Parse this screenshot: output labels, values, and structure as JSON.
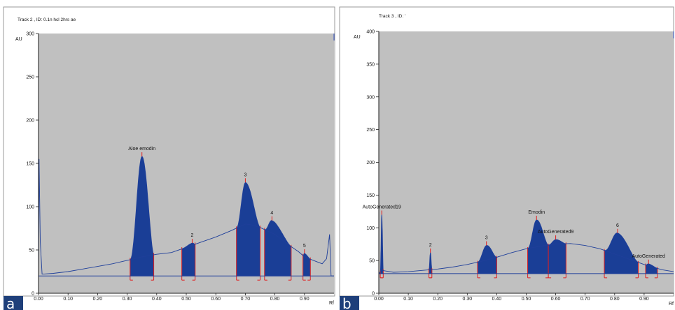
{
  "colors": {
    "plot_bg": "#c0c0c0",
    "trace": "#1f3f9a",
    "peak_fill": "#1a3e96",
    "marker": "#e02020",
    "axis": "#1a1a1a"
  },
  "chart_data": [
    {
      "type": "area",
      "title": "Track  2 , ID: 0.1n hcl 2hrs ae",
      "panel_letter": "a",
      "ylabel": "AU",
      "xlabel": "Rf",
      "xlim": [
        0,
        1.0
      ],
      "ylim": [
        0,
        300
      ],
      "x_ticks": [
        "0.00",
        "0.10",
        "0.20",
        "0.30",
        "0.40",
        "0.50",
        "0.60",
        "0.70",
        "0.80",
        "0.90"
      ],
      "y_ticks": [
        "0",
        "50",
        "100",
        "150",
        "200",
        "250",
        "300"
      ],
      "grid": false,
      "baseline": 20,
      "trace": [
        [
          0,
          20
        ],
        [
          0.002,
          155
        ],
        [
          0.006,
          60
        ],
        [
          0.012,
          22
        ],
        [
          0.05,
          23
        ],
        [
          0.1,
          25
        ],
        [
          0.15,
          28
        ],
        [
          0.2,
          31
        ],
        [
          0.25,
          34
        ],
        [
          0.3,
          38
        ],
        [
          0.35,
          42
        ],
        [
          0.4,
          45
        ],
        [
          0.45,
          47
        ],
        [
          0.5,
          53
        ],
        [
          0.55,
          59
        ],
        [
          0.6,
          65
        ],
        [
          0.65,
          72
        ],
        [
          0.7,
          80
        ],
        [
          0.72,
          79
        ],
        [
          0.75,
          76
        ],
        [
          0.8,
          68
        ],
        [
          0.85,
          55
        ],
        [
          0.88,
          48
        ],
        [
          0.9,
          42
        ],
        [
          0.93,
          38
        ],
        [
          0.96,
          34
        ],
        [
          0.975,
          40
        ],
        [
          0.985,
          68
        ],
        [
          0.99,
          20
        ],
        [
          1.0,
          20
        ]
      ],
      "peaks": [
        {
          "label": "Aloe emodin",
          "start": 0.31,
          "apex": 0.35,
          "end": 0.39,
          "height": 158
        },
        {
          "label": "2",
          "start": 0.485,
          "apex": 0.52,
          "end": 0.53,
          "height": 58
        },
        {
          "label": "3",
          "start": 0.67,
          "apex": 0.7,
          "end": 0.75,
          "height": 128
        },
        {
          "label": "4",
          "start": 0.765,
          "apex": 0.79,
          "end": 0.855,
          "height": 84
        },
        {
          "label": "5",
          "start": 0.895,
          "apex": 0.9,
          "end": 0.92,
          "height": 46
        }
      ]
    },
    {
      "type": "area",
      "title": "Track  3 , ID: '",
      "panel_letter": "b",
      "ylabel": "AU",
      "xlabel": "Rf",
      "xlim": [
        0,
        1.0
      ],
      "ylim": [
        0,
        400
      ],
      "x_ticks": [
        "0.00",
        "0.10",
        "0.20",
        "0.30",
        "0.40",
        "0.50",
        "0.60",
        "0.70",
        "0.80",
        "0.90"
      ],
      "y_ticks": [
        "0",
        "50",
        "100",
        "150",
        "200",
        "250",
        "300",
        "350",
        "400"
      ],
      "grid": false,
      "baseline": 30,
      "trace": [
        [
          0,
          30
        ],
        [
          0.01,
          35
        ],
        [
          0.05,
          32
        ],
        [
          0.1,
          33
        ],
        [
          0.15,
          35
        ],
        [
          0.2,
          37
        ],
        [
          0.25,
          40
        ],
        [
          0.3,
          44
        ],
        [
          0.35,
          49
        ],
        [
          0.4,
          55
        ],
        [
          0.45,
          62
        ],
        [
          0.5,
          68
        ],
        [
          0.55,
          72
        ],
        [
          0.6,
          75
        ],
        [
          0.65,
          76
        ],
        [
          0.7,
          73
        ],
        [
          0.75,
          68
        ],
        [
          0.8,
          60
        ],
        [
          0.85,
          52
        ],
        [
          0.9,
          44
        ],
        [
          0.93,
          40
        ],
        [
          0.96,
          36
        ],
        [
          1.0,
          33
        ]
      ],
      "peaks": [
        {
          "label": "AutoGenerated19",
          "start": 0.005,
          "apex": 0.01,
          "end": 0.015,
          "height": 120
        },
        {
          "label": "2",
          "start": 0.17,
          "apex": 0.175,
          "end": 0.18,
          "height": 62
        },
        {
          "label": "3",
          "start": 0.335,
          "apex": 0.365,
          "end": 0.4,
          "height": 73
        },
        {
          "label": "Emodin",
          "start": 0.505,
          "apex": 0.535,
          "end": 0.575,
          "height": 112
        },
        {
          "label": "AutoGenerated9",
          "start": 0.575,
          "apex": 0.6,
          "end": 0.635,
          "height": 82
        },
        {
          "label": "6",
          "start": 0.765,
          "apex": 0.81,
          "end": 0.88,
          "height": 92
        },
        {
          "label": "AutoGenerated",
          "start": 0.905,
          "apex": 0.915,
          "end": 0.945,
          "height": 45
        }
      ]
    }
  ]
}
